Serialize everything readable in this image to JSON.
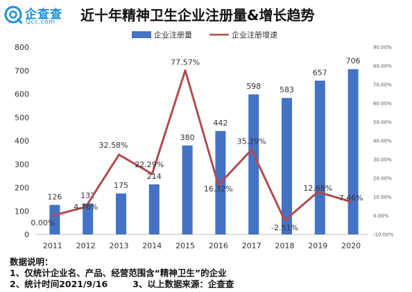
{
  "brand": {
    "name": "企查查",
    "url_text": "Qcc.com",
    "accent": "#1a8fdc"
  },
  "title": "近十年精神卫生企业注册量&增长趋势",
  "chart_data": {
    "type": "bar",
    "categories": [
      "2011",
      "2012",
      "2013",
      "2014",
      "2015",
      "2016",
      "2017",
      "2018",
      "2019",
      "2020"
    ],
    "series": [
      {
        "name": "企业注册量",
        "type": "bar",
        "axis": "left",
        "color": "#4472c4",
        "values": [
          126,
          132,
          175,
          214,
          380,
          442,
          598,
          583,
          657,
          706
        ],
        "labels": [
          "126",
          "132",
          "175",
          "214",
          "380",
          "442",
          "598",
          "583",
          "657",
          "706"
        ]
      },
      {
        "name": "企业注册增速",
        "type": "line",
        "axis": "right",
        "color": "#b24a4f",
        "values": [
          0.0,
          4.76,
          32.58,
          22.29,
          77.57,
          16.32,
          35.29,
          -2.51,
          12.68,
          7.46
        ],
        "labels": [
          "0.00%",
          "4.76%",
          "32.58%",
          "22.29%",
          "77.57%",
          "16.32%",
          "35.29%",
          "-2.51%",
          "12.68%",
          "7.46%"
        ]
      }
    ],
    "y_left": {
      "min": 0,
      "max": 800,
      "ticks": [
        "0",
        "100",
        "200",
        "300",
        "400",
        "500",
        "600",
        "700",
        "800"
      ]
    },
    "y_right": {
      "min": -10,
      "max": 90,
      "ticks": [
        "-10.00%",
        "0.00%",
        "10.00%",
        "20.00%",
        "30.00%",
        "40.00%",
        "50.00%",
        "60.00%",
        "70.00%",
        "80.00%",
        "90.00%"
      ]
    },
    "legend_position": "top-center",
    "grid": false
  },
  "notes": {
    "heading": "数据说明：",
    "line1": "1、仅统计企业名、产品、经营范围含“精神卫生”的企业",
    "line2a": "2、统计时间2021/9/16",
    "line2b": "3、以上数据来源：企查查"
  }
}
